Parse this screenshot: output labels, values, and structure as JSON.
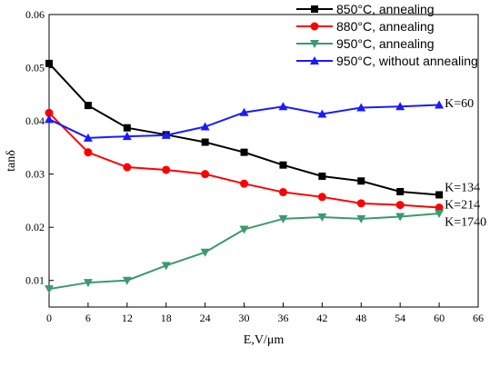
{
  "chart_data": {
    "type": "line",
    "xlabel": "E,V/μm",
    "ylabel": "tanδ",
    "xlim": [
      0,
      66
    ],
    "ylim": [
      0.005,
      0.06
    ],
    "x_ticks": [
      "0",
      "6",
      "12",
      "18",
      "24",
      "30",
      "36",
      "42",
      "48",
      "54",
      "60",
      "66"
    ],
    "y_ticks": [
      "0.01",
      "0.02",
      "0.03",
      "0.04",
      "0.05",
      "0.06"
    ],
    "legend_position": "top-right",
    "series": [
      {
        "name": "850°C, annealing",
        "color": "#000000",
        "marker": "square",
        "x": [
          0,
          6,
          12,
          18,
          24,
          30,
          36,
          42,
          48,
          54,
          60
        ],
        "values": [
          0.0508,
          0.0429,
          0.0387,
          0.0374,
          0.036,
          0.0341,
          0.0317,
          0.0296,
          0.0287,
          0.0267,
          0.0261
        ]
      },
      {
        "name": "880°C, annealing",
        "color": "#ff0000",
        "marker": "circle",
        "x": [
          0,
          6,
          12,
          18,
          24,
          30,
          36,
          42,
          48,
          54,
          60
        ],
        "values": [
          0.0415,
          0.0341,
          0.0313,
          0.0308,
          0.03,
          0.0282,
          0.0266,
          0.0257,
          0.0245,
          0.0242,
          0.0237
        ]
      },
      {
        "name": "950°C, annealing",
        "color": "#3a9a6e",
        "marker": "triangle-down",
        "x": [
          0,
          6,
          12,
          18,
          24,
          30,
          36,
          42,
          48,
          54,
          60
        ],
        "values": [
          0.0084,
          0.0096,
          0.01,
          0.0128,
          0.0153,
          0.0196,
          0.0216,
          0.0219,
          0.0216,
          0.022,
          0.0226
        ]
      },
      {
        "name": "950°C, without annealing",
        "color": "#1a1aff",
        "marker": "triangle-up",
        "x": [
          0,
          6,
          12,
          18,
          24,
          30,
          36,
          42,
          48,
          54,
          60
        ],
        "values": [
          0.0403,
          0.0368,
          0.0371,
          0.0373,
          0.0389,
          0.0416,
          0.0427,
          0.0413,
          0.0425,
          0.0427,
          0.043
        ]
      }
    ],
    "annotations": [
      {
        "text": "K=60",
        "x": 60,
        "y": 0.0434
      },
      {
        "text": "K=134",
        "x": 60,
        "y": 0.0276
      },
      {
        "text": "K=214",
        "x": 60,
        "y": 0.0244
      },
      {
        "text": "K=1740",
        "x": 60,
        "y": 0.0211
      }
    ]
  }
}
